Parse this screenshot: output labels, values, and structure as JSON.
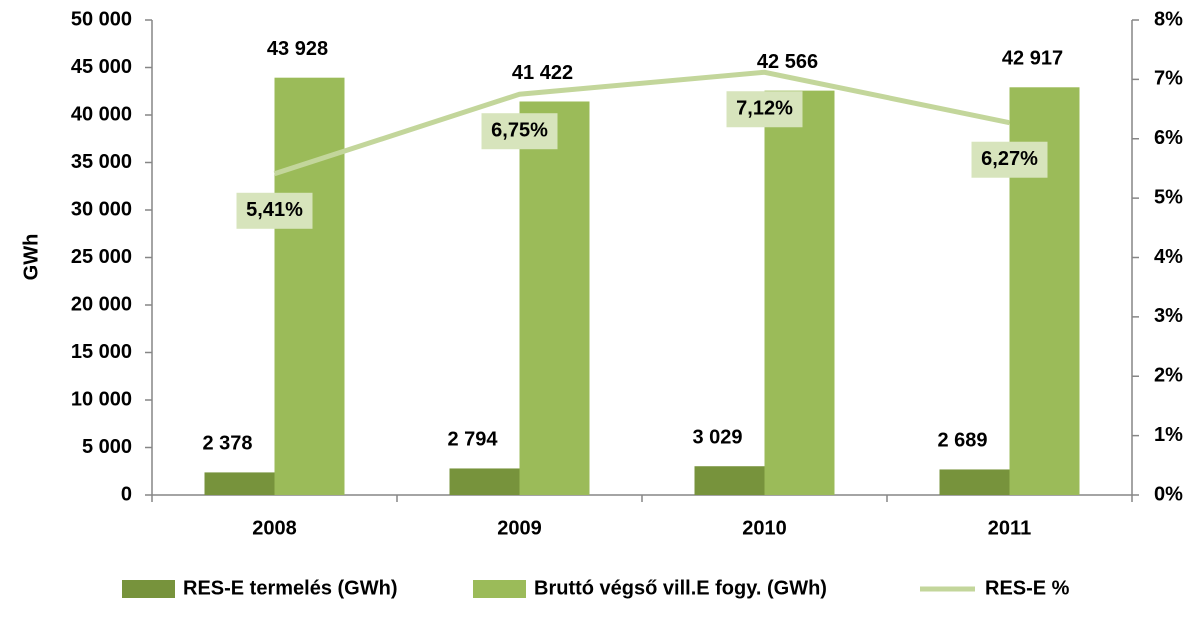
{
  "chart_data": {
    "type": "bar",
    "y_label": "GWh",
    "categories": [
      "2008",
      "2009",
      "2010",
      "2011"
    ],
    "series": [
      {
        "name": "RES-E termelés (GWh)",
        "color": "#77933c",
        "values": [
          2378,
          2794,
          3029,
          2689
        ],
        "value_labels": [
          "2 378",
          "2 794",
          "3 029",
          "2 689"
        ]
      },
      {
        "name": "Bruttó végső vill.E fogy. (GWh)",
        "color": "#9bbb59",
        "values": [
          43928,
          41422,
          42566,
          42917
        ],
        "value_labels": [
          "43 928",
          "41 422",
          "42 566",
          "42 917"
        ]
      },
      {
        "name": "RES-E %",
        "type": "line",
        "axis": "y2",
        "color": "#c3d69b",
        "values": [
          5.41,
          6.75,
          7.12,
          6.27
        ],
        "value_labels": [
          "5,41%",
          "6,75%",
          "7,12%",
          "6,27%"
        ]
      }
    ],
    "ylim": [
      0,
      50000
    ],
    "yticks": [
      0,
      {
        "value": 5000,
        "label": "5 000"
      },
      {
        "value": 10000,
        "label": "10 000"
      },
      {
        "value": 15000,
        "label": "15 000"
      },
      {
        "value": 20000,
        "label": "20 000"
      },
      {
        "value": 25000,
        "label": "25 000"
      },
      {
        "value": 30000,
        "label": "30 000"
      },
      {
        "value": 35000,
        "label": "35 000"
      },
      {
        "value": 40000,
        "label": "40 000"
      },
      {
        "value": 45000,
        "label": "45 000"
      },
      {
        "value": 50000,
        "label": "50 000"
      }
    ],
    "y2lim": [
      0,
      8
    ],
    "y2ticks": [
      {
        "value": 0,
        "label": "0%"
      },
      {
        "value": 1,
        "label": "1%"
      },
      {
        "value": 2,
        "label": "2%"
      },
      {
        "value": 3,
        "label": "3%"
      },
      {
        "value": 4,
        "label": "4%"
      },
      {
        "value": 5,
        "label": "5%"
      },
      {
        "value": 6,
        "label": "6%"
      },
      {
        "value": 7,
        "label": "7%"
      },
      {
        "value": 8,
        "label": "8%"
      }
    ],
    "grid": false,
    "legend": "bottom"
  }
}
